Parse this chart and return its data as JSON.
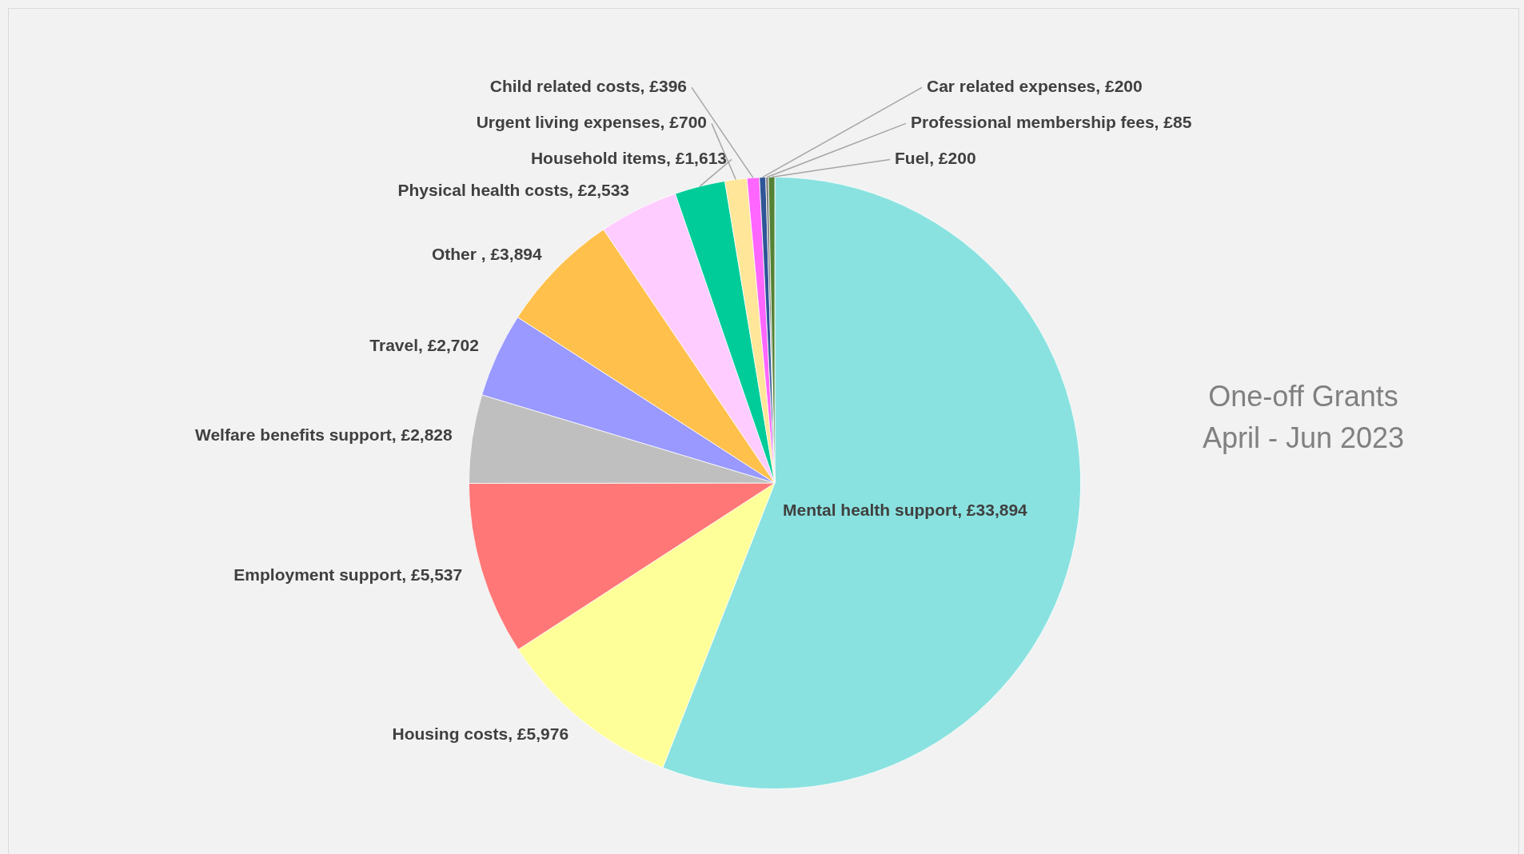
{
  "chart_data": {
    "type": "pie",
    "title": "One-off Grants",
    "subtitle": "April - Jun 2023",
    "categories": [
      "Mental health support",
      "Housing costs",
      "Employment support",
      "Welfare benefits support",
      "Travel",
      "Other ",
      "Physical health costs",
      "Household items",
      "Urgent living expenses",
      "Child related costs",
      "Car related expenses",
      "Professional membership fees",
      "Fuel"
    ],
    "values": [
      33894,
      5976,
      5537,
      2828,
      2702,
      3894,
      2533,
      1613,
      700,
      396,
      200,
      85,
      200
    ],
    "value_labels": [
      "£33,894",
      "£5,976",
      "£5,537",
      "£2,828",
      "£2,702",
      "£3,894",
      "£2,533",
      "£1,613",
      "£700",
      "£396",
      "£200",
      "£85",
      "£200"
    ],
    "colors": [
      "#8ae2e0",
      "#ffff99",
      "#ff7777",
      "#bfbfbf",
      "#9999ff",
      "#ffc04c",
      "#ffccff",
      "#00cc99",
      "#ffe699",
      "#ff66ff",
      "#2f5597",
      "#7f7f7f",
      "#548235"
    ],
    "legend": false
  }
}
